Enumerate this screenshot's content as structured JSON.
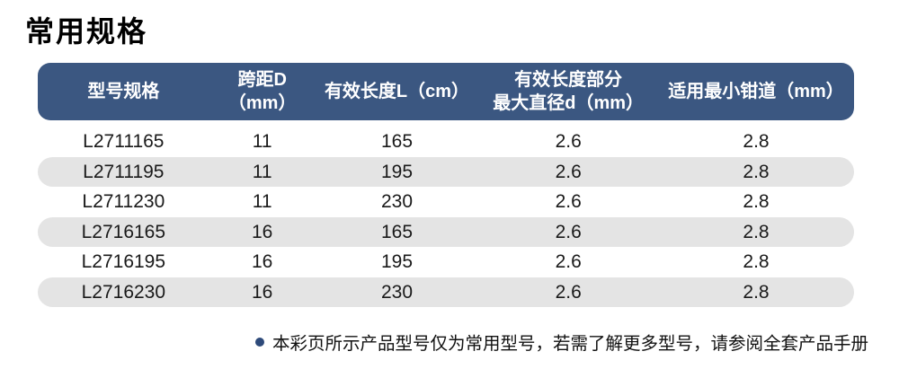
{
  "page": {
    "title": "常用规格"
  },
  "table": {
    "headers": [
      "型号规格",
      "跨距D（mm）",
      "有效长度L（cm）",
      "有效长度部分\n最大直径d（mm）",
      "适用最小钳道（mm）"
    ],
    "rows": [
      [
        "L2711165",
        "11",
        "165",
        "2.6",
        "2.8"
      ],
      [
        "L2711195",
        "11",
        "195",
        "2.6",
        "2.8"
      ],
      [
        "L2711230",
        "11",
        "230",
        "2.6",
        "2.8"
      ],
      [
        "L2716165",
        "16",
        "165",
        "2.6",
        "2.8"
      ],
      [
        "L2716195",
        "16",
        "195",
        "2.6",
        "2.8"
      ],
      [
        "L2716230",
        "16",
        "230",
        "2.6",
        "2.8"
      ]
    ]
  },
  "note": {
    "text": "本彩页所示产品型号仅为常用型号，若需了解更多型号，请参阅全套产品手册"
  },
  "colors": {
    "header_bg": "#3B5781",
    "row_alt_bg": "#E4E4E4",
    "bullet": "#2E4A7A"
  }
}
